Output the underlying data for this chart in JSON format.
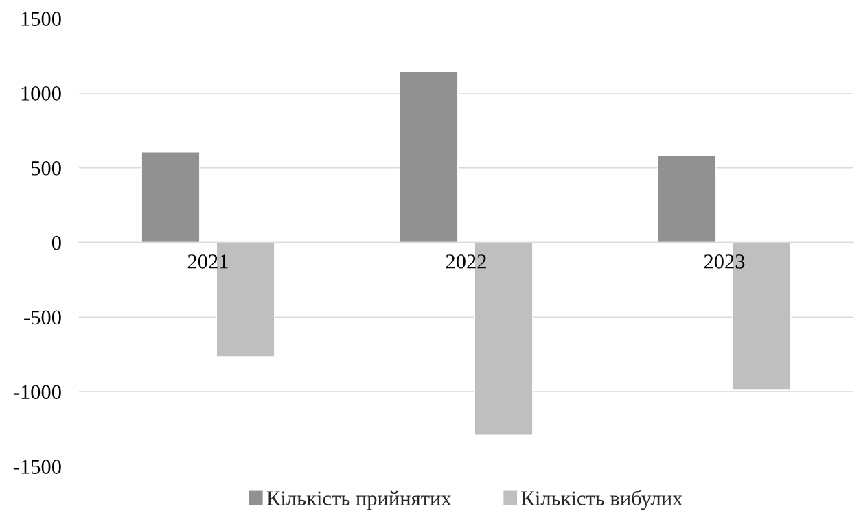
{
  "chart_data": {
    "type": "bar",
    "categories": [
      "2021",
      "2022",
      "2023"
    ],
    "series": [
      {
        "name": "Кількість прийнятих",
        "color": "#919191",
        "values": [
          605,
          1145,
          580
        ]
      },
      {
        "name": "Кількість вибулих",
        "color": "#bfbfbf",
        "values": [
          -765,
          -1290,
          -985
        ]
      }
    ],
    "ylim": [
      -1500,
      1500
    ],
    "yticks": [
      -1500,
      -1000,
      -500,
      0,
      500,
      1000,
      1500
    ],
    "grid": "y",
    "legend": "bottom"
  }
}
